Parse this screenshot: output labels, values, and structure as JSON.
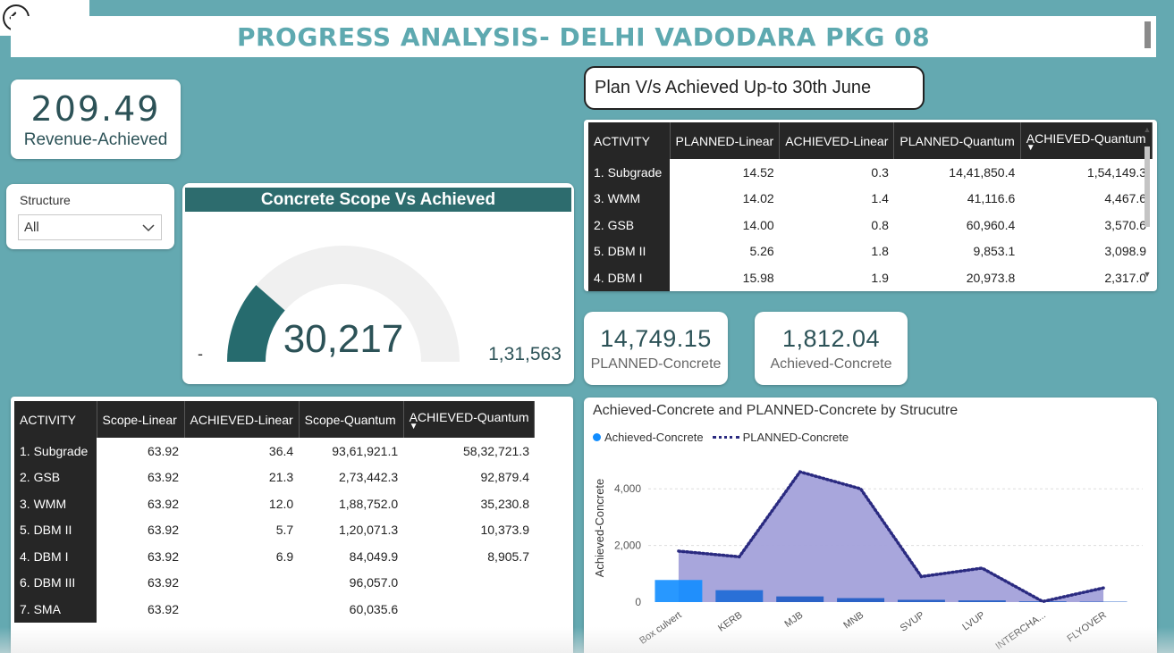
{
  "header": {
    "title": "PROGRESS ANALYSIS- DELHI VADODARA PKG 08"
  },
  "revenue": {
    "value": "209.49",
    "label": "Revenue-Achieved"
  },
  "slicer": {
    "label": "Structure",
    "selected": "All"
  },
  "gauge": {
    "title": "Concrete Scope Vs Achieved",
    "value": 30217,
    "value_label": "30,217",
    "min_label": "-",
    "max_label": "1,31,563",
    "max": 131563,
    "colors": {
      "fill": "#266b6e",
      "track": "#f0f0f0",
      "header": "#2d6c6e"
    }
  },
  "plan_title": "Plan V/s Achieved Up-to 30th June",
  "plan_table": {
    "columns": [
      "ACTIVITY",
      "PLANNED-Linear",
      "ACHIEVED-Linear",
      "PLANNED-Quantum",
      "ACHIEVED-Quantum"
    ],
    "rows": [
      [
        "1. Subgrade",
        "14.52",
        "0.3",
        "14,41,850.4",
        "1,54,149.3"
      ],
      [
        "3. WMM",
        "14.02",
        "1.4",
        "41,116.6",
        "4,467.6"
      ],
      [
        "2. GSB",
        "14.00",
        "0.8",
        "60,960.4",
        "3,570.6"
      ],
      [
        "5. DBM II",
        "5.26",
        "1.8",
        "9,853.1",
        "3,098.9"
      ],
      [
        "4. DBM I",
        "15.98",
        "1.9",
        "20,973.8",
        "2,317.0"
      ]
    ]
  },
  "planned_concrete": {
    "value": "14,749.15",
    "label": "PLANNED-Concrete"
  },
  "achieved_concrete": {
    "value": "1,812.04",
    "label": "Achieved-Concrete"
  },
  "scope_table": {
    "columns": [
      "ACTIVITY",
      "Scope-Linear",
      "ACHIEVED-Linear",
      "Scope-Quantum",
      "ACHIEVED-Quantum"
    ],
    "rows": [
      [
        "1. Subgrade",
        "63.92",
        "36.4",
        "93,61,921.1",
        "58,32,721.3"
      ],
      [
        "2. GSB",
        "63.92",
        "21.3",
        "2,73,442.3",
        "92,879.4"
      ],
      [
        "3. WMM",
        "63.92",
        "12.0",
        "1,88,752.0",
        "35,230.8"
      ],
      [
        "5. DBM II",
        "63.92",
        "5.7",
        "1,20,071.3",
        "10,373.9"
      ],
      [
        "4. DBM I",
        "63.92",
        "6.9",
        "84,049.9",
        "8,905.7"
      ],
      [
        "6. DBM III",
        "63.92",
        "",
        "96,057.0",
        ""
      ],
      [
        "7. SMA",
        "63.92",
        "",
        "60,035.6",
        ""
      ]
    ]
  },
  "chart_data": {
    "type": "bar",
    "title": "Achieved-Concrete and PLANNED-Concrete by Strucutre",
    "ylabel": "Achieved-Concrete",
    "categories": [
      "Box culvert",
      "KERB",
      "MJB",
      "MNB",
      "SVUP",
      "LVUP",
      "INTERCHA...",
      "FLYOVER"
    ],
    "ylim": [
      0,
      5000
    ],
    "yticks": [
      0,
      2000,
      4000
    ],
    "ytick_labels": [
      "0",
      "2,000",
      "4,000"
    ],
    "series": [
      {
        "name": "Achieved-Concrete",
        "type": "bar",
        "color": "#118dff",
        "values": [
          780,
          420,
          200,
          140,
          80,
          60,
          25,
          15
        ]
      },
      {
        "name": "PLANNED-Concrete",
        "type": "area",
        "color": "#2a2a80",
        "fill": "#a3a1da",
        "values": [
          1800,
          1600,
          4600,
          4000,
          900,
          1200,
          20,
          500
        ]
      }
    ],
    "legend": "top-left"
  }
}
